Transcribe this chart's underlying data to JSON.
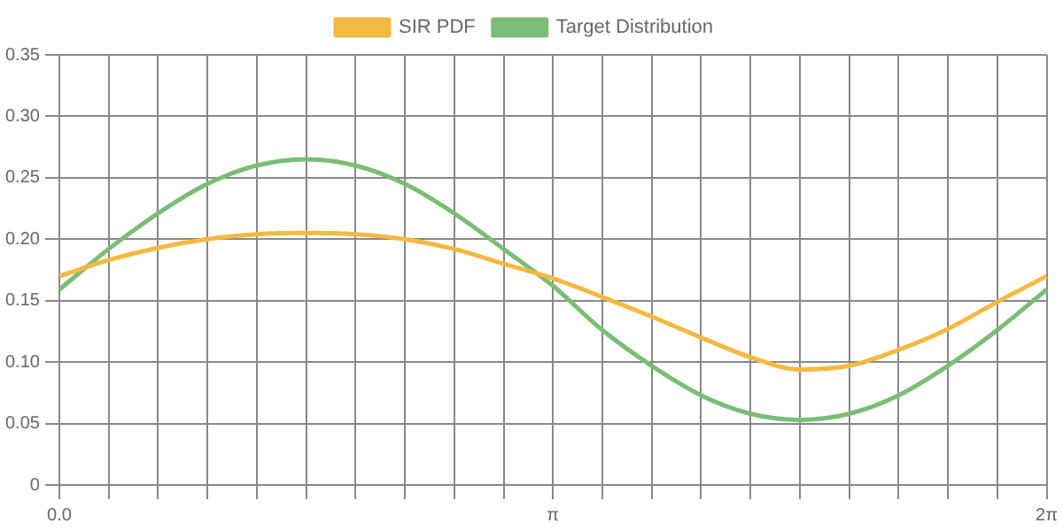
{
  "chart_data": {
    "type": "line",
    "categories": [
      "0.0",
      null,
      null,
      null,
      null,
      null,
      null,
      null,
      null,
      null,
      "π",
      null,
      null,
      null,
      null,
      null,
      null,
      null,
      null,
      null,
      "2π"
    ],
    "series": [
      {
        "name": "SIR PDF",
        "color": "#f4b942",
        "values": [
          0.17,
          0.183,
          0.193,
          0.2,
          0.204,
          0.205,
          0.204,
          0.2,
          0.192,
          0.18,
          0.168,
          0.153,
          0.137,
          0.12,
          0.104,
          0.094,
          0.097,
          0.11,
          0.127,
          0.149,
          0.17
        ]
      },
      {
        "name": "Target Distribution",
        "color": "#7bbd76",
        "values": [
          0.159,
          0.192,
          0.221,
          0.245,
          0.26,
          0.265,
          0.26,
          0.245,
          0.221,
          0.192,
          0.162,
          0.126,
          0.097,
          0.073,
          0.058,
          0.053,
          0.058,
          0.073,
          0.097,
          0.126,
          0.159
        ]
      }
    ],
    "ylim": [
      0,
      0.35
    ],
    "yticks": [
      {
        "value": 0,
        "label": "0"
      },
      0.05,
      {
        "value": 0.1,
        "label": "0.10"
      },
      0.15,
      {
        "value": 0.2,
        "label": "0.20"
      },
      0.25,
      {
        "value": 0.3,
        "label": "0.30"
      },
      0.35
    ],
    "grid": true,
    "legend": "top",
    "marker": "none",
    "line_style": "solid"
  }
}
